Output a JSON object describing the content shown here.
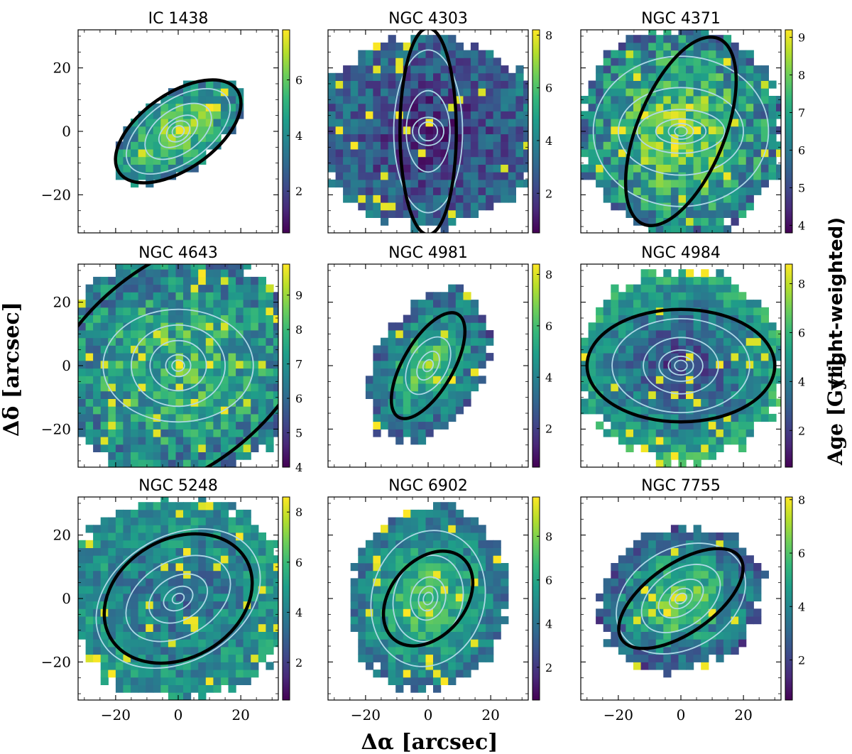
{
  "figure": {
    "xlabel": "Δα [arcsec]",
    "ylabel": "Δδ [arcsec]",
    "cbar_label": "Age [Gyr]",
    "cbar_label_suffix": "(light-weighted)"
  },
  "colors": {
    "contour": "#add8e6",
    "ellipse": "#000000",
    "colormap": [
      "#440154",
      "#482878",
      "#3e4989",
      "#31688e",
      "#26828e",
      "#1f9e89",
      "#35b779",
      "#6ece58",
      "#b5de2b",
      "#fde725"
    ]
  },
  "chart_data": [
    {
      "type": "heatmap",
      "title": "IC 1438",
      "xlim": [
        -32,
        32
      ],
      "ylim": [
        -32,
        32
      ],
      "xticks": [
        -20,
        0,
        20
      ],
      "yticks": [
        -20,
        0,
        20
      ],
      "cbar": {
        "min": 0.5,
        "max": 7.8,
        "ticks": [
          2,
          4,
          6
        ]
      },
      "center_value": 7.0,
      "edge_value": 3.5,
      "footprint": {
        "a": 24,
        "b": 12,
        "pa_deg": 35
      },
      "ellipse": {
        "a": 23,
        "b": 12,
        "pa_deg": 35
      },
      "contours": [
        {
          "a": 2,
          "b": 1.7,
          "pa": 35
        },
        {
          "a": 4,
          "b": 3,
          "pa": 35
        },
        {
          "a": 7,
          "b": 4,
          "pa": 35
        },
        {
          "a": 12,
          "b": 7,
          "pa": 35
        },
        {
          "a": 19,
          "b": 10,
          "pa": 35
        }
      ]
    },
    {
      "type": "heatmap",
      "title": "NGC 4303",
      "xlim": [
        -32,
        32
      ],
      "ylim": [
        -32,
        32
      ],
      "xticks": [
        -20,
        0,
        20
      ],
      "yticks": [
        -20,
        0,
        20
      ],
      "cbar": {
        "min": 0.5,
        "max": 8.2,
        "ticks": [
          2,
          4,
          6,
          8
        ]
      },
      "center_value": 1.5,
      "edge_value": 3.2,
      "footprint": {
        "a": 36,
        "b": 30,
        "pa_deg": 0
      },
      "ellipse": {
        "a": 33,
        "b": 9,
        "pa_deg": 90
      },
      "contours": [
        {
          "a": 3,
          "b": 3,
          "pa": 0
        },
        {
          "a": 5,
          "b": 4.5,
          "pa": 0
        },
        {
          "a": 13,
          "b": 7,
          "pa": 90
        },
        {
          "a": 26,
          "b": 11,
          "pa": 90
        }
      ]
    },
    {
      "type": "heatmap",
      "title": "NGC 4371",
      "xlim": [
        -32,
        32
      ],
      "ylim": [
        -32,
        32
      ],
      "xticks": [
        -20,
        0,
        20
      ],
      "yticks": [
        -20,
        0,
        20
      ],
      "cbar": {
        "min": 3.8,
        "max": 9.2,
        "ticks": [
          4,
          5,
          6,
          7,
          8,
          9
        ]
      },
      "center_value": 8.3,
      "edge_value": 6.0,
      "footprint": {
        "a": 33,
        "b": 33,
        "pa_deg": 0
      },
      "ellipse": {
        "a": 32,
        "b": 14,
        "pa_deg": 68
      },
      "contours": [
        {
          "a": 2,
          "b": 1.5,
          "pa": 0
        },
        {
          "a": 4,
          "b": 2.5,
          "pa": 0
        },
        {
          "a": 8,
          "b": 4,
          "pa": 0
        },
        {
          "a": 14,
          "b": 7,
          "pa": 0
        },
        {
          "a": 20,
          "b": 14,
          "pa": 0
        },
        {
          "a": 28,
          "b": 24,
          "pa": 0
        }
      ]
    },
    {
      "type": "heatmap",
      "title": "NGC 4643",
      "xlim": [
        -32,
        32
      ],
      "ylim": [
        -32,
        32
      ],
      "xticks": [
        -20,
        0,
        20
      ],
      "yticks": [
        -20,
        0,
        20
      ],
      "cbar": {
        "min": 4,
        "max": 9.9,
        "ticks": [
          4,
          5,
          6,
          7,
          8,
          9
        ]
      },
      "center_value": 8.0,
      "edge_value": 6.5,
      "footprint": {
        "a": 40,
        "b": 36,
        "pa_deg": 0
      },
      "ellipse": {
        "a": 52,
        "b": 32,
        "pa_deg": 40
      },
      "contours": [
        {
          "a": 2,
          "b": 1.8,
          "pa": 0
        },
        {
          "a": 4,
          "b": 3.5,
          "pa": 0
        },
        {
          "a": 9,
          "b": 8,
          "pa": 0
        },
        {
          "a": 15,
          "b": 13,
          "pa": 0
        },
        {
          "a": 24,
          "b": 18,
          "pa": 0
        }
      ]
    },
    {
      "type": "heatmap",
      "title": "NGC 4981",
      "xlim": [
        -32,
        32
      ],
      "ylim": [
        -32,
        32
      ],
      "xticks": [
        -20,
        0,
        20
      ],
      "yticks": [
        -20,
        0,
        20
      ],
      "cbar": {
        "min": 0.5,
        "max": 8.4,
        "ticks": [
          2,
          4,
          6,
          8
        ]
      },
      "center_value": 6.5,
      "edge_value": 3.0,
      "footprint": {
        "a": 26,
        "b": 17,
        "pa_deg": 60
      },
      "ellipse": {
        "a": 19,
        "b": 8,
        "pa_deg": 60
      },
      "contours": [
        {
          "a": 2,
          "b": 1.5,
          "pa": 60
        },
        {
          "a": 5,
          "b": 3,
          "pa": 60
        },
        {
          "a": 10,
          "b": 6,
          "pa": 60
        }
      ]
    },
    {
      "type": "heatmap",
      "title": "NGC 4984",
      "xlim": [
        -32,
        32
      ],
      "ylim": [
        -32,
        32
      ],
      "xticks": [
        -20,
        0,
        20
      ],
      "yticks": [
        -20,
        0,
        20
      ],
      "cbar": {
        "min": 0.5,
        "max": 8.8,
        "ticks": [
          2,
          4,
          6,
          8
        ]
      },
      "center_value": 2.0,
      "edge_value": 5.5,
      "footprint": {
        "a": 33,
        "b": 30,
        "pa_deg": 0
      },
      "ellipse": {
        "a": 30,
        "b": 18,
        "pa_deg": 0
      },
      "contours": [
        {
          "a": 2,
          "b": 1.7,
          "pa": 0
        },
        {
          "a": 4,
          "b": 3,
          "pa": 0
        },
        {
          "a": 7,
          "b": 5,
          "pa": 0
        },
        {
          "a": 12,
          "b": 9,
          "pa": 0
        },
        {
          "a": 22,
          "b": 15,
          "pa": 0
        }
      ]
    },
    {
      "type": "heatmap",
      "title": "NGC 5248",
      "xlim": [
        -32,
        32
      ],
      "ylim": [
        -32,
        32
      ],
      "xticks": [
        -20,
        0,
        20
      ],
      "yticks": [
        -20,
        0,
        20
      ],
      "cbar": {
        "min": 0.5,
        "max": 8.6,
        "ticks": [
          2,
          4,
          6,
          8
        ]
      },
      "center_value": 3.5,
      "edge_value": 4.8,
      "footprint": {
        "a": 36,
        "b": 32,
        "pa_deg": 0
      },
      "ellipse": {
        "a": 25,
        "b": 19,
        "pa_deg": 30
      },
      "contours": [
        {
          "a": 2,
          "b": 1.5,
          "pa": 30
        },
        {
          "a": 5,
          "b": 3.5,
          "pa": 30
        },
        {
          "a": 10,
          "b": 7,
          "pa": 30
        },
        {
          "a": 18,
          "b": 12,
          "pa": 30
        },
        {
          "a": 28,
          "b": 20,
          "pa": 30
        }
      ]
    },
    {
      "type": "heatmap",
      "title": "NGC 6902",
      "xlim": [
        -32,
        32
      ],
      "ylim": [
        -32,
        32
      ],
      "xticks": [
        -20,
        0,
        20
      ],
      "yticks": [
        -20,
        0,
        20
      ],
      "cbar": {
        "min": 0.5,
        "max": 9.8,
        "ticks": [
          2,
          4,
          6,
          8
        ]
      },
      "center_value": 7.5,
      "edge_value": 4.0,
      "footprint": {
        "a": 29,
        "b": 25,
        "pa_deg": 75
      },
      "ellipse": {
        "a": 17,
        "b": 12,
        "pa_deg": 50
      },
      "contours": [
        {
          "a": 2,
          "b": 1.5,
          "pa": 75
        },
        {
          "a": 4,
          "b": 3,
          "pa": 75
        },
        {
          "a": 7,
          "b": 5.5,
          "pa": 75
        },
        {
          "a": 14,
          "b": 11,
          "pa": 75
        },
        {
          "a": 22,
          "b": 18,
          "pa": 75
        }
      ]
    },
    {
      "type": "heatmap",
      "title": "NGC 7755",
      "xlim": [
        -32,
        32
      ],
      "ylim": [
        -32,
        32
      ],
      "xticks": [
        -20,
        0,
        20
      ],
      "yticks": [
        -20,
        0,
        20
      ],
      "cbar": {
        "min": 0.5,
        "max": 8.1,
        "ticks": [
          2,
          4,
          6,
          8
        ]
      },
      "center_value": 7.0,
      "edge_value": 2.5,
      "footprint": {
        "a": 27,
        "b": 22,
        "pa_deg": 20
      },
      "ellipse": {
        "a": 23,
        "b": 11,
        "pa_deg": 35
      },
      "contours": [
        {
          "a": 2,
          "b": 1.5,
          "pa": 35
        },
        {
          "a": 4,
          "b": 2.8,
          "pa": 35
        },
        {
          "a": 8,
          "b": 5,
          "pa": 35
        },
        {
          "a": 14,
          "b": 9,
          "pa": 35
        },
        {
          "a": 22,
          "b": 16,
          "pa": 30
        }
      ]
    }
  ]
}
